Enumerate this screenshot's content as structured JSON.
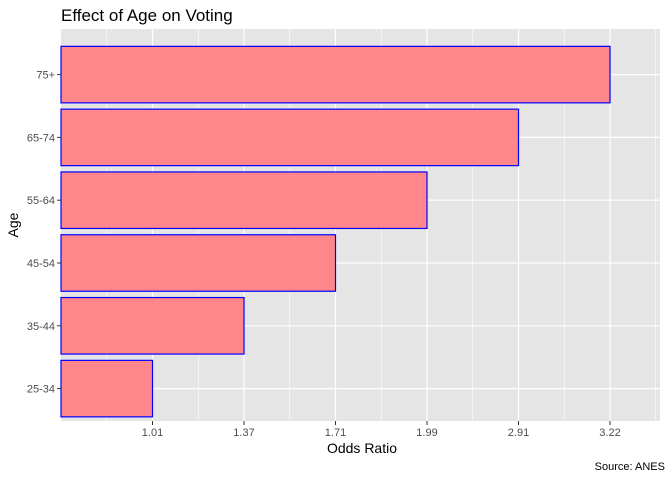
{
  "chart_data": {
    "type": "bar",
    "orientation": "horizontal",
    "title": "Effect of Age on Voting",
    "xlabel": "Odds Ratio",
    "ylabel": "Age",
    "caption": "Source: ANES",
    "categories": [
      "25-34",
      "35-44",
      "45-54",
      "55-64",
      "65-74",
      "75+"
    ],
    "values": [
      1.01,
      1.37,
      1.71,
      1.99,
      2.91,
      3.22
    ],
    "x_tick_labels": [
      "1.01",
      "1.37",
      "1.71",
      "1.99",
      "2.91",
      "3.22"
    ],
    "x_axis_scale": "categorical positions (tick labels equal bar values)",
    "grid": true,
    "legend": "none",
    "colors": {
      "bar_fill": "#ff878b",
      "bar_outline": "#0000ff",
      "panel_background": "#e5e5e5",
      "grid": "#ffffff"
    }
  }
}
